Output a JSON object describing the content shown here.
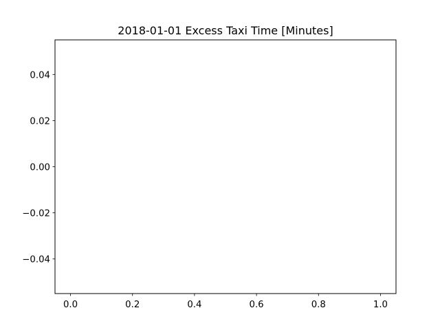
{
  "chart_data": {
    "type": "line",
    "title": "2018-01-01 Excess Taxi Time [Minutes]",
    "xlabel": "",
    "ylabel": "",
    "series": [],
    "xlim": [
      -0.05,
      1.05
    ],
    "ylim": [
      -0.055,
      0.055
    ],
    "x_ticks": [
      0.0,
      0.2,
      0.4,
      0.6,
      0.8,
      1.0
    ],
    "x_tick_labels": [
      "0.0",
      "0.2",
      "0.4",
      "0.6",
      "0.8",
      "1.0"
    ],
    "y_ticks": [
      0.04,
      0.02,
      0.0,
      -0.02,
      -0.04
    ],
    "y_tick_labels": [
      "0.04",
      "0.02",
      "0.00",
      "−0.02",
      "−0.04"
    ],
    "grid": false,
    "legend": "none"
  },
  "colors": {
    "background": "#ffffff",
    "axes": "#000000",
    "text": "#000000"
  }
}
